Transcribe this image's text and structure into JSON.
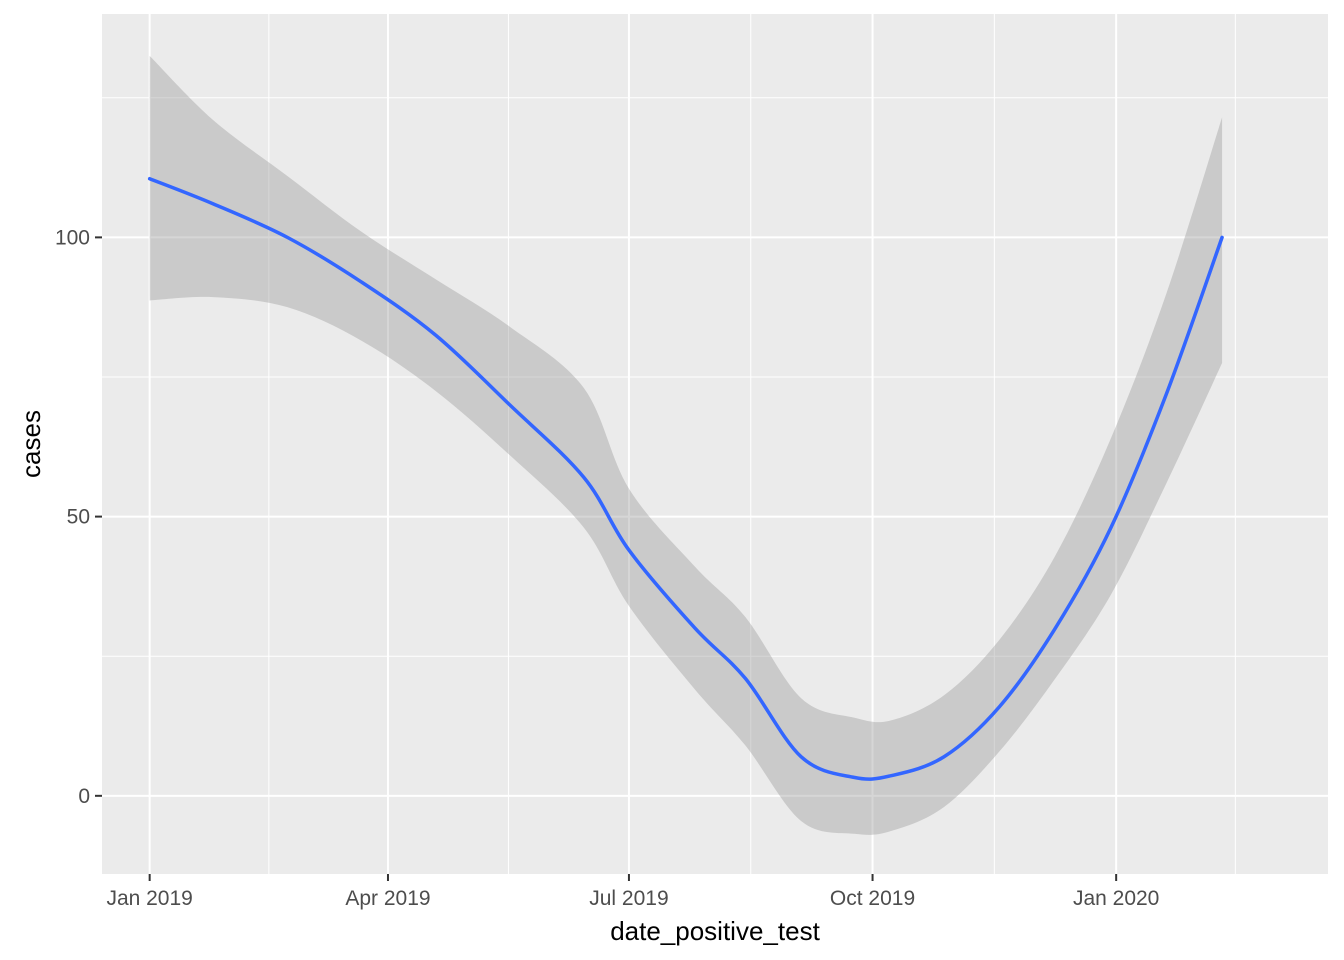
{
  "chart_data": {
    "type": "line",
    "title": "",
    "xlabel": "date_positive_test",
    "ylabel": "cases",
    "x_ticks": [
      "2019-01-01",
      "2019-04-01",
      "2019-07-01",
      "2019-10-01",
      "2020-01-01"
    ],
    "x_tick_labels": [
      "Jan 2019",
      "Apr 2019",
      "Jul 2019",
      "Oct 2019",
      "Jan 2020"
    ],
    "y_ticks": [
      0,
      50,
      100
    ],
    "y_tick_labels": [
      "0",
      "50",
      "100"
    ],
    "xlim": [
      "2018-12-14",
      "2020-03-21"
    ],
    "ylim": [
      -14,
      140
    ],
    "grid": true,
    "series": [
      {
        "color": "#3366FF",
        "band_color": "#999999",
        "x": [
          "2019-01-01",
          "2019-01-25",
          "2019-02-22",
          "2019-03-22",
          "2019-04-19",
          "2019-05-17",
          "2019-06-14",
          "2019-07-01",
          "2019-07-26",
          "2019-08-14",
          "2019-09-04",
          "2019-09-24",
          "2019-10-08",
          "2019-10-28",
          "2019-11-18",
          "2019-12-09",
          "2019-12-30",
          "2020-01-20",
          "2020-02-10"
        ],
        "y": [
          110.5,
          106,
          100,
          92,
          82.5,
          70,
          57,
          44,
          30,
          21,
          7,
          3.3,
          3.6,
          7,
          16,
          30,
          48,
          72,
          100
        ],
        "lower": [
          88.7,
          89.3,
          87.5,
          81.5,
          72.5,
          61,
          48,
          34,
          19,
          9,
          -4.5,
          -6.8,
          -6.3,
          -2,
          8,
          21,
          36,
          56,
          77.5
        ],
        "upper": [
          132.5,
          121,
          111,
          101,
          92.5,
          84,
          73,
          55,
          41,
          32,
          17.5,
          14,
          13.5,
          18,
          28,
          43,
          64,
          90,
          121.5
        ]
      }
    ]
  }
}
